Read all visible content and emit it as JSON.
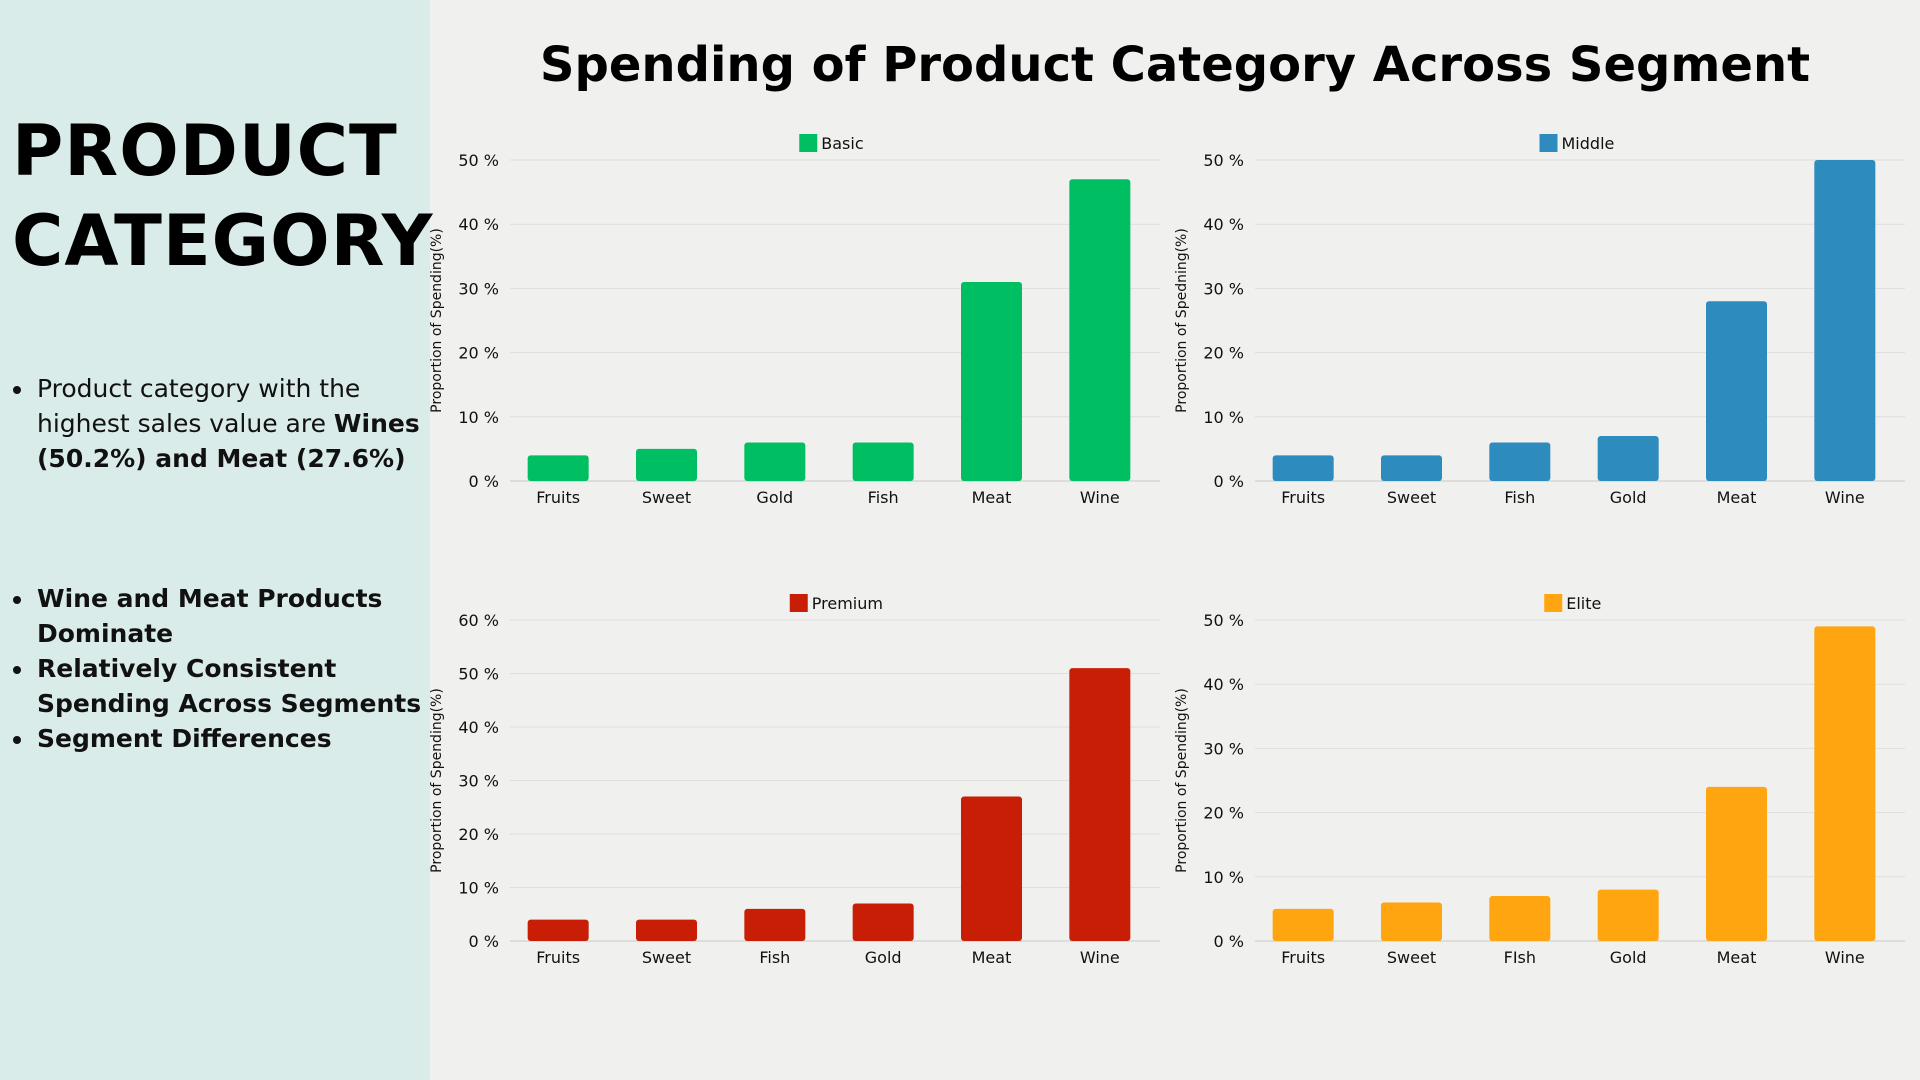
{
  "sidebar": {
    "title_line1": "PRODUCT",
    "title_line2": "CATEGORY",
    "intro_bullet": {
      "text_plain": "Product category with the highest sales value are ",
      "text_bold": "Wines (50.2%) and Meat (27.6%)"
    },
    "key_points": [
      "Wine and Meat Products Dominate",
      "Relatively Consistent Spending Across Segments",
      "Segment Differences"
    ]
  },
  "main_title": "Spending of Product Category Across Segment",
  "chart_data": [
    {
      "type": "bar",
      "legend": "Basic",
      "color": "#00bf63",
      "ylabel": "Proportion of Spending(%)",
      "ylim": [
        0,
        50
      ],
      "yticks": [
        "0 %",
        "10 %",
        "20 %",
        "30 %",
        "40 %",
        "50 %"
      ],
      "categories": [
        "Fruits",
        "Sweet",
        "Gold",
        "Fish",
        "Meat",
        "Wine"
      ],
      "values": [
        4,
        5,
        6,
        6,
        31,
        47
      ],
      "legend_position": "top-center",
      "grid": true
    },
    {
      "type": "bar",
      "legend": "Middle",
      "color": "#2e8bbd",
      "ylabel": "Proportion of Spedning(%)",
      "ylim": [
        0,
        50
      ],
      "yticks": [
        "0 %",
        "10 %",
        "20 %",
        "30 %",
        "40 %",
        "50 %"
      ],
      "categories": [
        "Fruits",
        "Sweet",
        "Fish",
        "Gold",
        "Meat",
        "Wine"
      ],
      "values": [
        4,
        4,
        6,
        7,
        28,
        50
      ],
      "legend_position": "top-center",
      "grid": true
    },
    {
      "type": "bar",
      "legend": "Premium",
      "color": "#c91e06",
      "ylabel": "Proportion of Spending(%)",
      "ylim": [
        0,
        60
      ],
      "yticks": [
        "0 %",
        "10 %",
        "20 %",
        "30 %",
        "40 %",
        "50 %",
        "60 %"
      ],
      "categories": [
        "Fruits",
        "Sweet",
        "Fish",
        "Gold",
        "Meat",
        "Wine"
      ],
      "values": [
        4,
        4,
        6,
        7,
        27,
        51
      ],
      "legend_position": "top-center",
      "grid": true
    },
    {
      "type": "bar",
      "legend": "Elite",
      "color": "#ffa50f",
      "ylabel": "Proportion of Spending(%)",
      "ylim": [
        0,
        50
      ],
      "yticks": [
        "0 %",
        "10 %",
        "20 %",
        "30 %",
        "40 %",
        "50 %"
      ],
      "categories": [
        "Fruits",
        "Sweet",
        "FIsh",
        "Gold",
        "Meat",
        "Wine"
      ],
      "values": [
        5,
        6,
        7,
        8,
        24,
        49
      ],
      "legend_position": "top-center",
      "grid": true
    }
  ]
}
